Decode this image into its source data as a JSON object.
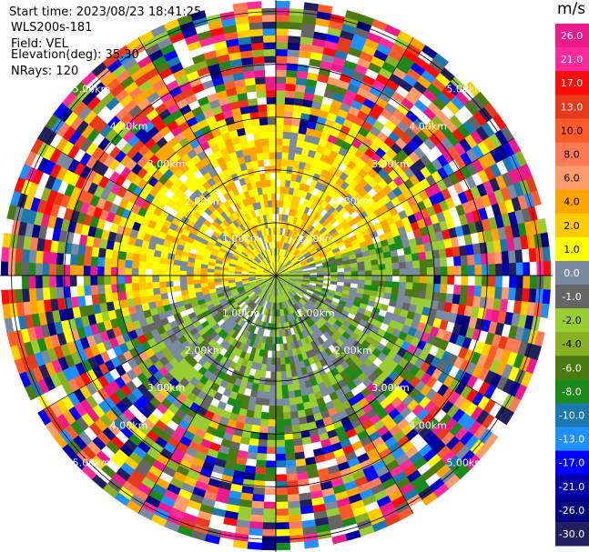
{
  "header": {
    "start_time": "Start time: 2023/08/23 18:41:25",
    "instrument": "WLS200s-181",
    "field": "Field: VEL",
    "elevation": "Elevation(deg): 35.30",
    "nrays": "NRays: 120"
  },
  "colorbar": {
    "unit": "m/s",
    "ticks": [
      "26.0",
      "21.0",
      "17.0",
      "13.0",
      "10.0",
      "8.0",
      "6.0",
      "4.0",
      "2.0",
      "1.0",
      "0.0",
      "-1.0",
      "-2.0",
      "-4.0",
      "-6.0",
      "-8.0",
      "-10.0",
      "-13.0",
      "-17.0",
      "-21.0",
      "-26.0",
      "-30.0"
    ],
    "colors": [
      "#ee1a8c",
      "#ff2a9a",
      "#ff0a0a",
      "#e83a1a",
      "#ff5a2a",
      "#ff7a55",
      "#ff9c6a",
      "#ffa500",
      "#ffcc00",
      "#ffff00",
      "#7a8aa0",
      "#666666",
      "#9acd32",
      "#88b020",
      "#4a7a10",
      "#1a8a1a",
      "#1a7ab0",
      "#1e90ff",
      "#0000ff",
      "#0000aa",
      "#000080",
      "#202060"
    ]
  },
  "chart_data": {
    "type": "ppi",
    "field": "VEL",
    "nrays": 120,
    "range_rings_km": [
      1.0,
      2.0,
      3.0,
      4.0,
      5.0
    ],
    "ring_labels": [
      "1.00km",
      "2.00km",
      "3.00km",
      "4.00km",
      "5.00km"
    ],
    "value_min": -30.0,
    "value_max": 26.0,
    "pattern_note": "north/west sector yellow-orange (positive), south/east sector green-grey (negative), noisy outer ranges"
  }
}
